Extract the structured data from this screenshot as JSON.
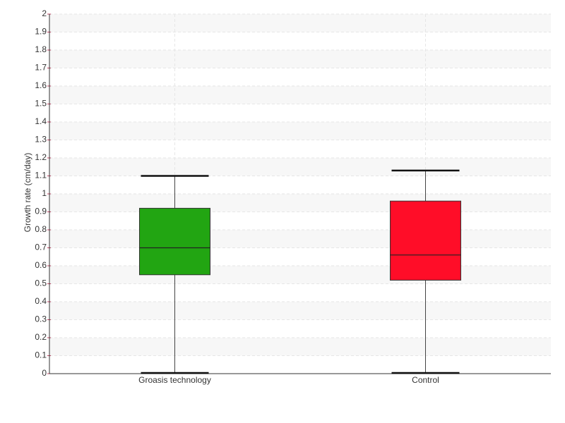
{
  "chart_data": {
    "type": "box",
    "ylabel": "Growth rate (cm/day)",
    "categories": [
      "Groasis technology",
      "Control"
    ],
    "min": [
      0,
      0
    ],
    "q1": [
      0.55,
      0.52
    ],
    "median": [
      0.7,
      0.66
    ],
    "q3": [
      0.92,
      0.96
    ],
    "max": [
      1.1,
      1.13
    ],
    "colors": [
      "#22a512",
      "#ff0d28"
    ],
    "ylim": [
      0,
      2
    ],
    "yticks": [
      0,
      0.1,
      0.2,
      0.3,
      0.4,
      0.5,
      0.6,
      0.7,
      0.8,
      0.9,
      1,
      1.1,
      1.2,
      1.3,
      1.4,
      1.5,
      1.6,
      1.7,
      1.8,
      1.9,
      2
    ],
    "grid": true
  }
}
